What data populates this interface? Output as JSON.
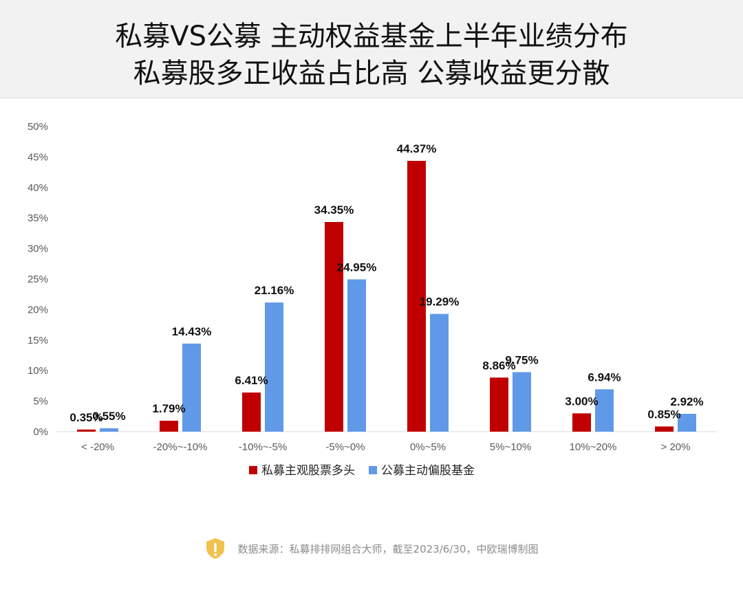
{
  "header": {
    "title_line1": "私募VS公募  主动权益基金上半年业绩分布",
    "title_line2": "私募股多正收益占比高 公募收益更分散"
  },
  "colors": {
    "private": "#c00000",
    "public": "#6099e8",
    "header_bg": "#f2f2f2",
    "icon": "#f2c14e"
  },
  "chart_data": {
    "type": "bar",
    "categories": [
      "< -20%",
      "-20%~-10%",
      "-10%~-5%",
      "-5%~0%",
      "0%~5%",
      "5%~10%",
      "10%~20%",
      "> 20%"
    ],
    "series": [
      {
        "name": "私募主观股票多头",
        "values": [
          0.35,
          1.79,
          6.41,
          34.35,
          44.37,
          8.86,
          3.0,
          0.85
        ],
        "labels": [
          "0.35%",
          "1.79%",
          "6.41%",
          "34.35%",
          "44.37%",
          "8.86%",
          "3.00%",
          "0.85%"
        ]
      },
      {
        "name": "公募主动偏股基金",
        "values": [
          0.55,
          14.43,
          21.16,
          24.95,
          19.29,
          9.75,
          6.94,
          2.92
        ],
        "labels": [
          "0.55%",
          "14.43%",
          "21.16%",
          "24.95%",
          "19.29%",
          "9.75%",
          "6.94%",
          "2.92%"
        ]
      }
    ],
    "ylim": [
      0,
      50
    ],
    "yticks": [
      "0%",
      "5%",
      "10%",
      "15%",
      "20%",
      "25%",
      "30%",
      "35%",
      "40%",
      "45%",
      "50%"
    ],
    "grid": false,
    "legend_position": "bottom"
  },
  "footer": {
    "icon": "warning-shield-icon",
    "source": "数据来源：私募排排网组合大师，截至2023/6/30，中欧瑞博制图"
  }
}
